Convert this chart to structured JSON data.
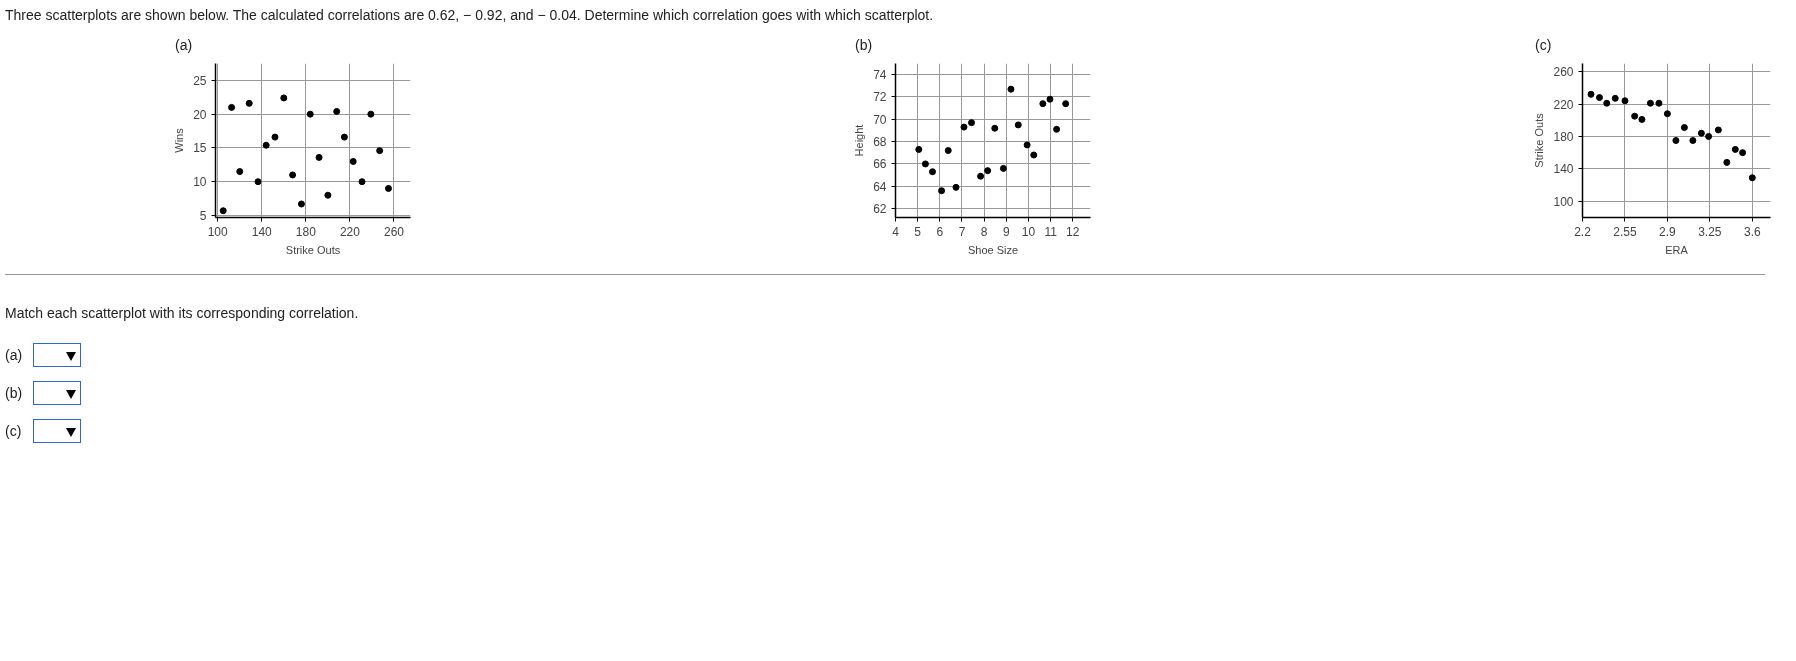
{
  "chart_data": [
    {
      "type": "scatter",
      "title": "(a)",
      "xlabel": "Strike Outs",
      "ylabel": "Wins",
      "marker": "circle",
      "grid": true,
      "annotations": [
        "Three scatterplots are shown below. The calculated correlations are 0.62, − 0.92, and − 0.04. Determine which correlation goes with which scatterplot.",
        "Match each scatterplot with its corresponding correlation.",
        "(a)",
        "(b)",
        "(c)"
      ],
      "x": [
        105,
        112.6,
        128.6,
        160,
        120,
        136.6,
        144,
        152,
        168,
        176,
        184,
        192,
        200,
        208,
        215,
        223,
        231,
        239,
        247,
        255
      ],
      "series": [
        {
          "color": "#000000",
          "values": [
            5.7,
            21,
            21.6,
            22.4,
            11.5,
            10,
            15.4,
            16.6,
            11,
            6.7,
            20,
            13.6,
            8,
            20.4,
            16.6,
            13,
            10,
            20,
            14.6,
            9
          ]
        }
      ],
      "xlim": [
        98,
        275
      ],
      "ylim": [
        4.7,
        27.5
      ],
      "xticks": [
        100,
        140,
        180,
        220,
        260
      ],
      "yticks": [
        5,
        10,
        15,
        20,
        25
      ]
    },
    {
      "type": "scatter",
      "title": "(b)",
      "xlabel": "Shoe Size",
      "ylabel": "Height",
      "marker": "circle",
      "grid": true,
      "x": [
        5.05,
        5.35,
        5.67,
        6.08,
        6.38,
        6.73,
        7.09,
        7.43,
        7.84,
        8.16,
        8.48,
        8.87,
        9.21,
        9.54,
        9.94,
        10.24,
        10.65,
        10.97,
        11.27,
        11.68
      ],
      "series": [
        {
          "color": "#000000",
          "values": [
            67.3,
            66.0,
            65.3,
            63.6,
            67.2,
            63.9,
            69.3,
            69.7,
            64.9,
            65.4,
            69.2,
            65.6,
            72.7,
            69.5,
            67.7,
            66.8,
            71.4,
            71.8,
            69.1,
            71.4
          ]
        }
      ],
      "xlim": [
        4,
        12.8
      ],
      "ylim": [
        61.2,
        75
      ],
      "xticks": [
        4,
        5,
        6,
        7,
        8,
        9,
        10,
        11,
        12
      ],
      "yticks": [
        62,
        64,
        66,
        68,
        70,
        72,
        74
      ]
    },
    {
      "type": "scatter",
      "title": "(c)",
      "xlabel": "ERA",
      "ylabel": "Strike Outs",
      "marker": "circle",
      "grid": true,
      "x": [
        2.27,
        2.34,
        2.4,
        2.47,
        2.55,
        2.63,
        2.69,
        2.76,
        2.83,
        2.9,
        2.97,
        3.04,
        3.11,
        3.18,
        3.24,
        3.32,
        3.39,
        3.46,
        3.52,
        3.6
      ],
      "series": [
        {
          "color": "#000000",
          "values": [
            232,
            228,
            221,
            227,
            224,
            205,
            201,
            221,
            221,
            208,
            175,
            191,
            175,
            184,
            180,
            188,
            148,
            164,
            160,
            129
          ]
        }
      ],
      "xlim": [
        2.2,
        3.75
      ],
      "ylim": [
        80,
        270
      ],
      "xticks": [
        2.2,
        2.55,
        2.9,
        3.25,
        3.6
      ],
      "yticks": [
        100,
        140,
        180,
        220,
        260
      ]
    }
  ]
}
